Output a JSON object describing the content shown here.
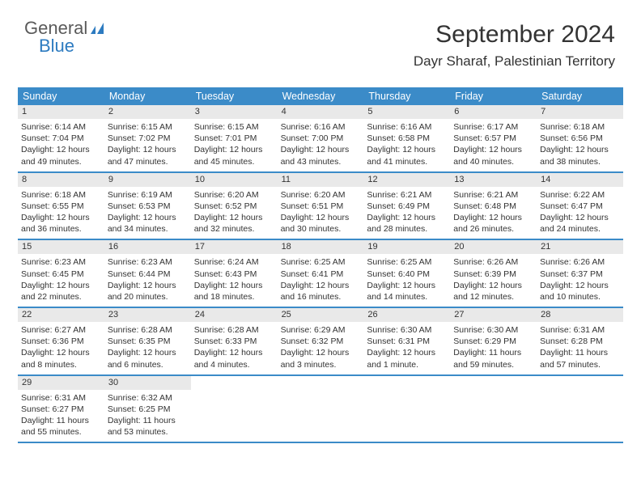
{
  "logo": {
    "text1": "General",
    "text2": "Blue"
  },
  "header": {
    "month": "September 2024",
    "location": "Dayr Sharaf, Palestinian Territory"
  },
  "colors": {
    "header_bar": "#3b8bc8",
    "daynum_bg": "#e9e9e9",
    "rule": "#3b8bc8",
    "logo_gray": "#5a5a5a",
    "logo_blue": "#2d7bc0"
  },
  "daynames": [
    "Sunday",
    "Monday",
    "Tuesday",
    "Wednesday",
    "Thursday",
    "Friday",
    "Saturday"
  ],
  "days": [
    {
      "n": 1,
      "sr": "6:14 AM",
      "ss": "7:04 PM",
      "dl": "12 hours and 49 minutes."
    },
    {
      "n": 2,
      "sr": "6:15 AM",
      "ss": "7:02 PM",
      "dl": "12 hours and 47 minutes."
    },
    {
      "n": 3,
      "sr": "6:15 AM",
      "ss": "7:01 PM",
      "dl": "12 hours and 45 minutes."
    },
    {
      "n": 4,
      "sr": "6:16 AM",
      "ss": "7:00 PM",
      "dl": "12 hours and 43 minutes."
    },
    {
      "n": 5,
      "sr": "6:16 AM",
      "ss": "6:58 PM",
      "dl": "12 hours and 41 minutes."
    },
    {
      "n": 6,
      "sr": "6:17 AM",
      "ss": "6:57 PM",
      "dl": "12 hours and 40 minutes."
    },
    {
      "n": 7,
      "sr": "6:18 AM",
      "ss": "6:56 PM",
      "dl": "12 hours and 38 minutes."
    },
    {
      "n": 8,
      "sr": "6:18 AM",
      "ss": "6:55 PM",
      "dl": "12 hours and 36 minutes."
    },
    {
      "n": 9,
      "sr": "6:19 AM",
      "ss": "6:53 PM",
      "dl": "12 hours and 34 minutes."
    },
    {
      "n": 10,
      "sr": "6:20 AM",
      "ss": "6:52 PM",
      "dl": "12 hours and 32 minutes."
    },
    {
      "n": 11,
      "sr": "6:20 AM",
      "ss": "6:51 PM",
      "dl": "12 hours and 30 minutes."
    },
    {
      "n": 12,
      "sr": "6:21 AM",
      "ss": "6:49 PM",
      "dl": "12 hours and 28 minutes."
    },
    {
      "n": 13,
      "sr": "6:21 AM",
      "ss": "6:48 PM",
      "dl": "12 hours and 26 minutes."
    },
    {
      "n": 14,
      "sr": "6:22 AM",
      "ss": "6:47 PM",
      "dl": "12 hours and 24 minutes."
    },
    {
      "n": 15,
      "sr": "6:23 AM",
      "ss": "6:45 PM",
      "dl": "12 hours and 22 minutes."
    },
    {
      "n": 16,
      "sr": "6:23 AM",
      "ss": "6:44 PM",
      "dl": "12 hours and 20 minutes."
    },
    {
      "n": 17,
      "sr": "6:24 AM",
      "ss": "6:43 PM",
      "dl": "12 hours and 18 minutes."
    },
    {
      "n": 18,
      "sr": "6:25 AM",
      "ss": "6:41 PM",
      "dl": "12 hours and 16 minutes."
    },
    {
      "n": 19,
      "sr": "6:25 AM",
      "ss": "6:40 PM",
      "dl": "12 hours and 14 minutes."
    },
    {
      "n": 20,
      "sr": "6:26 AM",
      "ss": "6:39 PM",
      "dl": "12 hours and 12 minutes."
    },
    {
      "n": 21,
      "sr": "6:26 AM",
      "ss": "6:37 PM",
      "dl": "12 hours and 10 minutes."
    },
    {
      "n": 22,
      "sr": "6:27 AM",
      "ss": "6:36 PM",
      "dl": "12 hours and 8 minutes."
    },
    {
      "n": 23,
      "sr": "6:28 AM",
      "ss": "6:35 PM",
      "dl": "12 hours and 6 minutes."
    },
    {
      "n": 24,
      "sr": "6:28 AM",
      "ss": "6:33 PM",
      "dl": "12 hours and 4 minutes."
    },
    {
      "n": 25,
      "sr": "6:29 AM",
      "ss": "6:32 PM",
      "dl": "12 hours and 3 minutes."
    },
    {
      "n": 26,
      "sr": "6:30 AM",
      "ss": "6:31 PM",
      "dl": "12 hours and 1 minute."
    },
    {
      "n": 27,
      "sr": "6:30 AM",
      "ss": "6:29 PM",
      "dl": "11 hours and 59 minutes."
    },
    {
      "n": 28,
      "sr": "6:31 AM",
      "ss": "6:28 PM",
      "dl": "11 hours and 57 minutes."
    },
    {
      "n": 29,
      "sr": "6:31 AM",
      "ss": "6:27 PM",
      "dl": "11 hours and 55 minutes."
    },
    {
      "n": 30,
      "sr": "6:32 AM",
      "ss": "6:25 PM",
      "dl": "11 hours and 53 minutes."
    }
  ],
  "labels": {
    "sunrise": "Sunrise: ",
    "sunset": "Sunset: ",
    "daylight": "Daylight: "
  },
  "layout": {
    "start_weekday": 0,
    "total_weeks": 5
  },
  "font": {
    "daynum_size": 11,
    "lines_size": 10.5,
    "header_size": 12.5,
    "month_size": 30,
    "location_size": 17
  }
}
